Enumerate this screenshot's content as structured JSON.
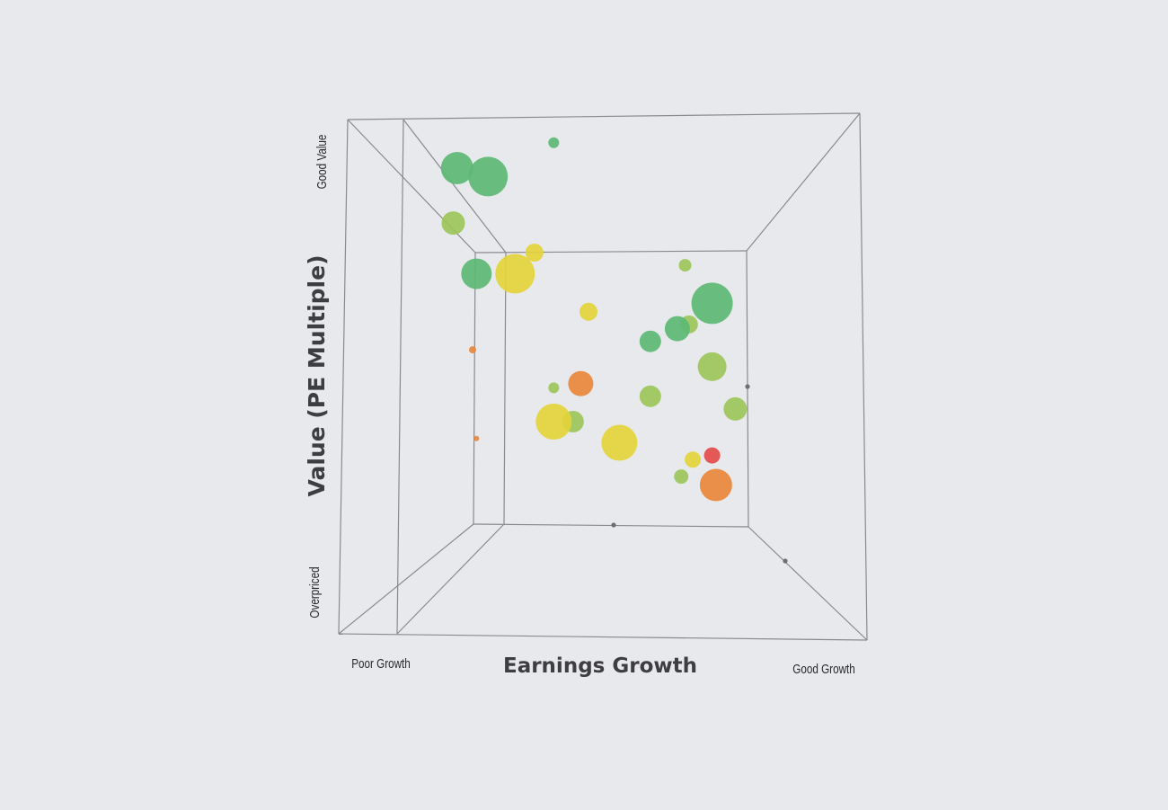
{
  "chart_data": {
    "type": "scatter",
    "projection": "3d-box",
    "xlabel": "Earnings Growth",
    "ylabel": "Value (PE Multiple)",
    "x_end_labels": {
      "low": "Poor Growth",
      "high": "Good Growth"
    },
    "y_end_labels": {
      "low": "Overpriced",
      "high": "Good Value"
    },
    "xlim": [
      0,
      1
    ],
    "ylim": [
      0,
      1
    ],
    "grid": false,
    "colors": {
      "green": "#5cb874",
      "lime": "#9cc55a",
      "yellow": "#e3d43a",
      "orange": "#e8873c",
      "red": "#e34b4b",
      "box_line": "#8a8a8e",
      "tick_dot": "#6e6e72"
    },
    "points": [
      {
        "x": 0.41,
        "y": 0.96,
        "depth": 0.45,
        "size": 6,
        "color": "green"
      },
      {
        "x": 0.16,
        "y": 0.9,
        "depth": 0.05,
        "size": 18,
        "color": "green"
      },
      {
        "x": 0.24,
        "y": 0.88,
        "depth": 0.12,
        "size": 22,
        "color": "green"
      },
      {
        "x": 0.15,
        "y": 0.77,
        "depth": 0.15,
        "size": 13,
        "color": "lime"
      },
      {
        "x": 0.36,
        "y": 0.7,
        "depth": 0.85,
        "size": 10,
        "color": "yellow"
      },
      {
        "x": 0.21,
        "y": 0.65,
        "depth": 0.22,
        "size": 17,
        "color": "green"
      },
      {
        "x": 0.31,
        "y": 0.65,
        "depth": 0.45,
        "size": 22,
        "color": "yellow"
      },
      {
        "x": 0.75,
        "y": 0.67,
        "depth": 0.92,
        "size": 7,
        "color": "lime"
      },
      {
        "x": 0.5,
        "y": 0.56,
        "depth": 0.85,
        "size": 10,
        "color": "yellow"
      },
      {
        "x": 0.82,
        "y": 0.58,
        "depth": 0.5,
        "size": 23,
        "color": "green"
      },
      {
        "x": 0.73,
        "y": 0.52,
        "depth": 0.62,
        "size": 14,
        "color": "green"
      },
      {
        "x": 0.76,
        "y": 0.53,
        "depth": 0.88,
        "size": 10,
        "color": "lime"
      },
      {
        "x": 0.66,
        "y": 0.49,
        "depth": 0.68,
        "size": 12,
        "color": "green"
      },
      {
        "x": 0.2,
        "y": 0.47,
        "depth": 0.9,
        "size": 4,
        "color": "orange"
      },
      {
        "x": 0.82,
        "y": 0.43,
        "depth": 0.35,
        "size": 16,
        "color": "lime"
      },
      {
        "x": 0.48,
        "y": 0.39,
        "depth": 0.7,
        "size": 14,
        "color": "orange"
      },
      {
        "x": 0.41,
        "y": 0.38,
        "depth": 0.95,
        "size": 6,
        "color": "lime"
      },
      {
        "x": 0.66,
        "y": 0.36,
        "depth": 0.62,
        "size": 12,
        "color": "lime"
      },
      {
        "x": 0.88,
        "y": 0.33,
        "depth": 0.4,
        "size": 13,
        "color": "lime"
      },
      {
        "x": 0.41,
        "y": 0.3,
        "depth": 0.55,
        "size": 20,
        "color": "yellow"
      },
      {
        "x": 0.46,
        "y": 0.3,
        "depth": 0.7,
        "size": 12,
        "color": "lime"
      },
      {
        "x": 0.21,
        "y": 0.26,
        "depth": 0.92,
        "size": 3,
        "color": "orange"
      },
      {
        "x": 0.58,
        "y": 0.25,
        "depth": 0.55,
        "size": 20,
        "color": "yellow"
      },
      {
        "x": 0.82,
        "y": 0.22,
        "depth": 0.65,
        "size": 9,
        "color": "red"
      },
      {
        "x": 0.77,
        "y": 0.21,
        "depth": 0.75,
        "size": 9,
        "color": "yellow"
      },
      {
        "x": 0.83,
        "y": 0.15,
        "depth": 0.4,
        "size": 18,
        "color": "orange"
      },
      {
        "x": 0.74,
        "y": 0.17,
        "depth": 0.68,
        "size": 8,
        "color": "lime"
      }
    ]
  }
}
